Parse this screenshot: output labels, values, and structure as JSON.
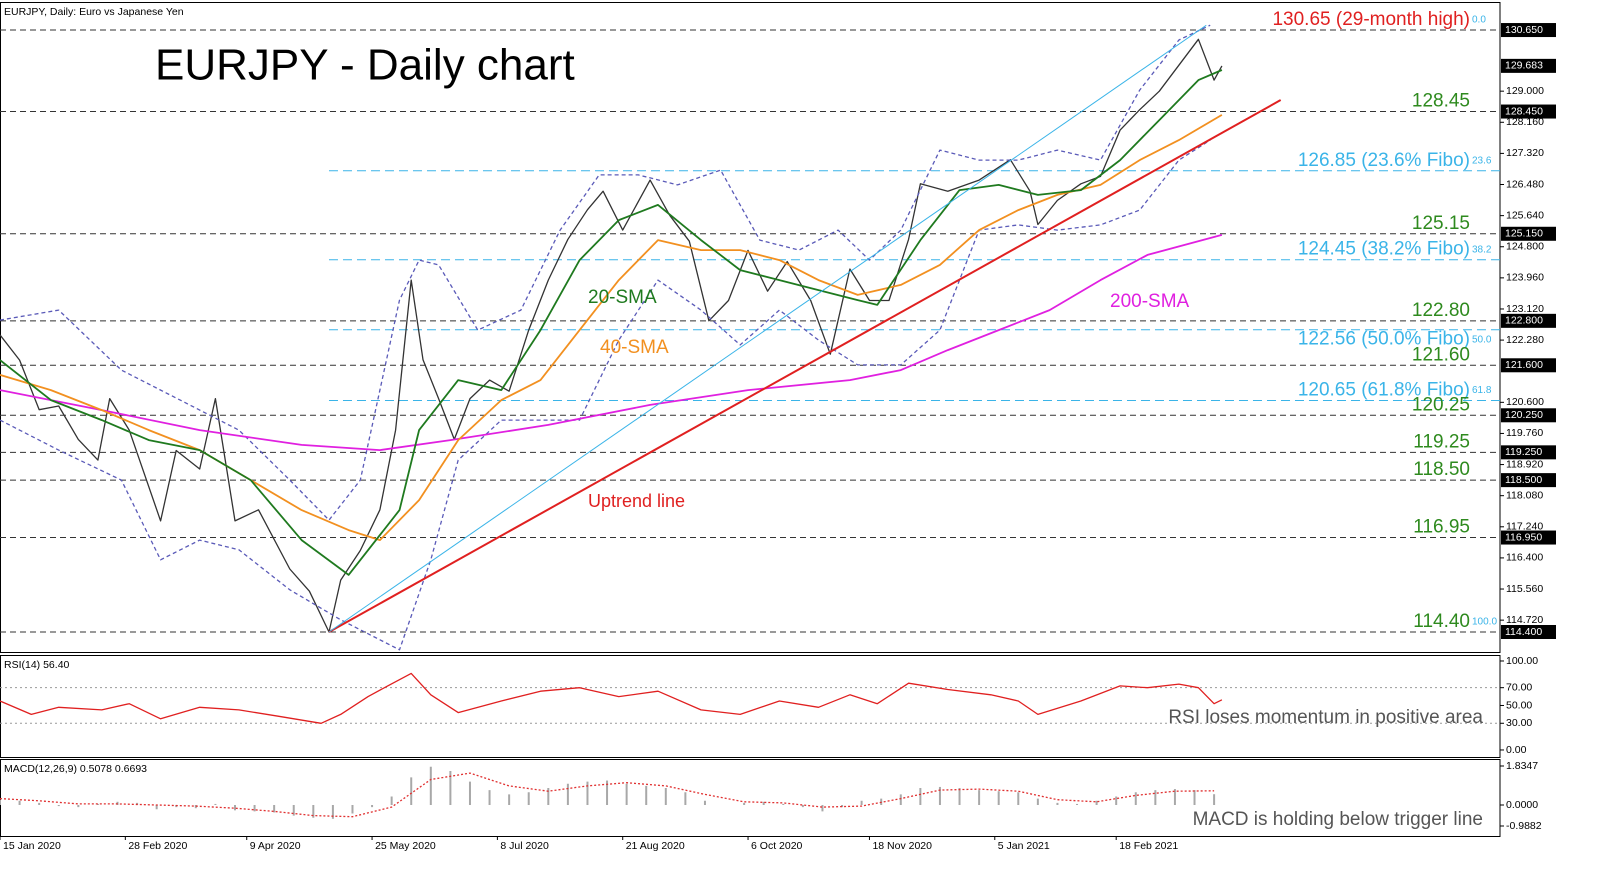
{
  "chart_data": [
    {
      "type": "line",
      "title": "EURJPY, Daily:  Euro vs Japanese Yen",
      "annotation": "EURJPY - Daily chart",
      "xlim": [
        0,
        383
      ],
      "ylim": [
        113.86,
        131.38
      ],
      "yticks": [
        {
          "value": 129.0,
          "label": "129.000"
        },
        {
          "value": 128.16,
          "label": "128.160"
        },
        {
          "value": 127.32,
          "label": "127.320"
        },
        {
          "value": 126.48,
          "label": "126.480"
        },
        {
          "value": 125.64,
          "label": "125.640"
        },
        {
          "value": 124.8,
          "label": "124.800"
        },
        {
          "value": 123.96,
          "label": "123.960"
        },
        {
          "value": 123.12,
          "label": "123.120"
        },
        {
          "value": 122.28,
          "label": "122.280"
        },
        {
          "value": 120.6,
          "label": "120.600"
        },
        {
          "value": 119.76,
          "label": "119.760"
        },
        {
          "value": 118.92,
          "label": "118.920"
        },
        {
          "value": 118.08,
          "label": "118.080"
        },
        {
          "value": 117.24,
          "label": "117.240"
        },
        {
          "value": 116.4,
          "label": "116.400"
        },
        {
          "value": 115.56,
          "label": "115.560"
        },
        {
          "value": 114.72,
          "label": "114.720"
        }
      ],
      "last_label": "129.683",
      "series": [
        {
          "color": "#333333",
          "x": [
            0,
            5,
            10,
            15,
            20,
            25,
            28,
            33,
            41,
            45,
            51,
            55,
            60,
            66,
            74,
            79,
            84,
            87,
            92,
            97,
            101,
            105,
            108,
            112,
            116,
            120,
            125,
            130,
            135,
            140,
            145,
            150,
            154,
            159,
            166,
            171,
            176,
            181,
            186,
            191,
            196,
            201,
            207,
            212,
            217,
            222,
            227,
            232,
            235,
            242,
            250,
            258,
            263,
            265,
            270,
            276,
            281,
            286,
            291,
            296,
            301,
            306,
            310,
            312
          ],
          "values": [
            122.42,
            121.74,
            120.4,
            120.5,
            119.6,
            119.04,
            120.7,
            119.85,
            117.4,
            119.3,
            118.8,
            120.7,
            117.4,
            117.7,
            116.1,
            115.5,
            114.4,
            115.8,
            116.6,
            117.7,
            119.85,
            123.9,
            121.75,
            120.7,
            119.6,
            120.7,
            121.2,
            120.9,
            122.55,
            123.9,
            125.0,
            125.8,
            126.3,
            125.25,
            126.6,
            125.65,
            124.95,
            122.8,
            123.35,
            124.7,
            123.6,
            124.4,
            123.35,
            121.9,
            124.2,
            123.35,
            123.35,
            125.0,
            126.5,
            126.3,
            126.6,
            127.15,
            126.3,
            125.4,
            126.05,
            126.5,
            126.7,
            127.95,
            128.5,
            129.0,
            129.7,
            130.4,
            129.3,
            129.683
          ]
        },
        {
          "color": "#5a5ab8",
          "style": "dashed",
          "x": [
            0,
            15,
            31,
            46,
            61,
            74,
            84,
            92,
            102,
            107,
            112,
            122,
            133,
            143,
            153,
            163,
            173,
            184,
            194,
            204,
            214,
            222,
            230,
            240,
            250,
            260,
            270,
            281,
            291,
            301,
            309
          ],
          "values": [
            122.82,
            123.09,
            121.47,
            120.66,
            119.85,
            118.5,
            117.42,
            118.5,
            123.36,
            124.44,
            124.31,
            122.55,
            123.09,
            125.25,
            126.74,
            126.74,
            126.47,
            126.87,
            124.98,
            124.71,
            125.25,
            124.44,
            125.25,
            127.41,
            127.14,
            127.14,
            127.41,
            127.14,
            129.03,
            130.38,
            130.78
          ]
        },
        {
          "color": "#5a5ab8",
          "style": "dashed",
          "x": [
            0,
            15,
            31,
            41,
            51,
            61,
            74,
            87,
            102,
            110,
            117,
            128,
            138,
            148,
            158,
            168,
            179,
            189,
            199,
            209,
            219,
            230,
            240,
            250,
            260,
            270,
            281,
            291,
            301,
            309
          ],
          "values": [
            120.12,
            119.31,
            118.5,
            116.35,
            116.88,
            116.62,
            115.54,
            114.73,
            113.92,
            116.35,
            119.04,
            120.12,
            120.12,
            120.12,
            122.28,
            123.9,
            123.09,
            122.15,
            123.09,
            122.28,
            121.61,
            121.61,
            122.55,
            125.25,
            125.39,
            125.25,
            125.39,
            125.79,
            127.14,
            127.68
          ]
        },
        {
          "name": "200-SMA",
          "color": "#e020e0",
          "x": [
            0,
            26,
            51,
            77,
            97,
            115,
            140,
            166,
            191,
            217,
            230,
            242,
            255,
            268,
            281,
            293,
            312
          ],
          "values": [
            120.93,
            120.39,
            119.85,
            119.45,
            119.31,
            119.58,
            119.99,
            120.53,
            120.93,
            121.2,
            121.47,
            122.01,
            122.55,
            123.09,
            123.9,
            124.58,
            125.12
          ]
        },
        {
          "name": "40-SMA",
          "color": "#f29020",
          "x": [
            0,
            13,
            26,
            38,
            51,
            64,
            77,
            89,
            97,
            107,
            117,
            128,
            138,
            148,
            158,
            168,
            179,
            189,
            199,
            209,
            219,
            230,
            240,
            250,
            260,
            270,
            281,
            291,
            301,
            312
          ],
          "values": [
            121.34,
            120.93,
            120.39,
            119.85,
            119.31,
            118.5,
            117.69,
            117.15,
            116.88,
            117.96,
            119.58,
            120.66,
            121.2,
            122.55,
            123.9,
            124.98,
            124.71,
            124.71,
            124.44,
            123.9,
            123.5,
            123.77,
            124.31,
            125.25,
            125.79,
            126.2,
            126.47,
            127.14,
            127.68,
            128.36
          ]
        },
        {
          "name": "20-SMA",
          "color": "#1f7a1f",
          "x": [
            0,
            13,
            26,
            38,
            51,
            64,
            77,
            89,
            102,
            107,
            117,
            128,
            138,
            148,
            158,
            168,
            179,
            189,
            199,
            209,
            219,
            224,
            235,
            245,
            255,
            265,
            276,
            286,
            296,
            306,
            312
          ],
          "values": [
            121.74,
            120.66,
            120.12,
            119.58,
            119.31,
            118.5,
            116.88,
            115.94,
            117.69,
            119.85,
            121.2,
            120.93,
            122.55,
            124.44,
            125.52,
            125.93,
            124.98,
            124.17,
            123.9,
            123.63,
            123.36,
            123.23,
            124.98,
            126.33,
            126.47,
            126.2,
            126.33,
            127.14,
            128.22,
            129.3,
            129.57
          ]
        }
      ],
      "lines": [
        {
          "label": "Uptrend line",
          "color": "#e02020",
          "x": [
            84,
            327
          ],
          "values": [
            114.4,
            128.76
          ]
        },
        {
          "color": "#3ab4e8",
          "x": [
            84,
            308
          ],
          "values": [
            114.4,
            130.78
          ]
        }
      ],
      "levels": [
        {
          "value": 130.65,
          "label": "130.65 (29-month high)",
          "color": "#e02020",
          "axis_label": "130.650",
          "fibo": "0.0"
        },
        {
          "value": 128.45,
          "label": "128.45",
          "color": "#2e8a1e",
          "axis_label": "128.450"
        },
        {
          "value": 126.85,
          "label": "126.85 (23.6% Fibo)",
          "color": "#3ab4e8",
          "fibo": "23.6"
        },
        {
          "value": 125.15,
          "label": "125.15",
          "color": "#2e8a1e",
          "axis_label": "125.150"
        },
        {
          "value": 124.45,
          "label": "124.45 (38.2% Fibo)",
          "color": "#3ab4e8",
          "fibo": "38.2"
        },
        {
          "value": 122.8,
          "label": "122.80",
          "color": "#2e8a1e",
          "axis_label": "122.800"
        },
        {
          "value": 122.56,
          "label": "122.56 (50.0% Fibo)",
          "color": "#3ab4e8",
          "fibo": "50.0"
        },
        {
          "value": 121.6,
          "label": "121.60",
          "color": "#2e8a1e",
          "axis_label": "121.600"
        },
        {
          "value": 120.65,
          "label": "120.65 (61.8% Fibo)",
          "color": "#3ab4e8",
          "fibo": "61.8"
        },
        {
          "value": 120.25,
          "label": "120.25",
          "color": "#2e8a1e",
          "axis_label": "120.250"
        },
        {
          "value": 119.25,
          "label": "119.25",
          "color": "#2e8a1e",
          "axis_label": "119.250"
        },
        {
          "value": 118.5,
          "label": "118.50",
          "color": "#2e8a1e",
          "axis_label": "118.500"
        },
        {
          "value": 116.95,
          "label": "116.95",
          "color": "#2e8a1e",
          "axis_label": "116.950"
        },
        {
          "value": 114.4,
          "label": "114.40",
          "color": "#2e8a1e",
          "axis_label": "114.400",
          "fibo": "100.0"
        }
      ]
    },
    {
      "type": "line",
      "title": "RSI(14) 56.40",
      "annotation": "RSI loses momentum in positive area",
      "xlim": [
        0,
        383
      ],
      "ylim": [
        -7.9,
        105.6
      ],
      "yticks": [
        {
          "value": 100,
          "label": "100.00"
        },
        {
          "value": 70,
          "label": "70.00"
        },
        {
          "value": 50,
          "label": "50.00"
        },
        {
          "value": 30,
          "label": "30.00"
        },
        {
          "value": 0,
          "label": "0.00"
        }
      ],
      "levels": [
        70,
        30
      ],
      "series": [
        {
          "color": "#e02020",
          "x": [
            0,
            8,
            15,
            26,
            33,
            41,
            51,
            61,
            71,
            82,
            87,
            94,
            99,
            105,
            110,
            117,
            128,
            138,
            148,
            158,
            168,
            179,
            189,
            199,
            209,
            217,
            224,
            232,
            242,
            253,
            260,
            265,
            276,
            286,
            293,
            301,
            306,
            310,
            312
          ],
          "values": [
            55,
            40,
            48,
            45,
            52,
            35,
            48,
            45,
            38,
            30,
            40,
            60,
            72,
            86,
            62,
            42,
            55,
            66,
            70,
            60,
            66,
            45,
            40,
            55,
            48,
            62,
            52,
            75,
            68,
            62,
            55,
            40,
            55,
            72,
            70,
            74,
            70,
            52,
            56.4
          ]
        }
      ]
    },
    {
      "type": "bar",
      "title": "MACD(12,26,9) 0.5078 0.6693",
      "annotation": "MACD is holding below trigger line",
      "xlim": [
        0,
        383
      ],
      "ylim": [
        -1.458,
        2.117
      ],
      "yticks": [
        1.8347,
        {
          "value": 0,
          "label": "0.0000"
        },
        -0.9882
      ],
      "xticks": [
        {
          "value": 0,
          "label": "15 Jan 2020"
        },
        {
          "value": 32,
          "label": "28 Feb 2020"
        },
        {
          "value": 63,
          "label": "9 Apr 2020"
        },
        {
          "value": 95,
          "label": "25 May 2020"
        },
        {
          "value": 127,
          "label": "8 Jul 2020"
        },
        {
          "value": 159,
          "label": "21 Aug 2020"
        },
        {
          "value": 191,
          "label": "6 Oct 2020"
        },
        {
          "value": 222,
          "label": "18 Nov 2020"
        },
        {
          "value": 254,
          "label": "5 Jan 2021"
        },
        {
          "value": 285,
          "label": "18 Feb 2021"
        }
      ],
      "series": [
        {
          "type": "bar",
          "color": "#a8a8a8",
          "x": [
            0,
            5,
            10,
            15,
            20,
            25,
            30,
            35,
            40,
            45,
            50,
            55,
            60,
            65,
            70,
            75,
            80,
            85,
            90,
            95,
            100,
            105,
            110,
            115,
            120,
            125,
            130,
            135,
            140,
            145,
            150,
            155,
            160,
            165,
            170,
            175,
            180,
            185,
            190,
            195,
            200,
            205,
            210,
            215,
            220,
            225,
            230,
            235,
            240,
            245,
            250,
            255,
            260,
            265,
            270,
            275,
            280,
            285,
            290,
            295,
            300,
            305,
            310
          ],
          "values": [
            0.25,
            0.2,
            0.1,
            -0.05,
            -0.1,
            0.05,
            0.15,
            0.1,
            -0.2,
            -0.1,
            -0.15,
            0.05,
            -0.25,
            -0.3,
            -0.35,
            -0.5,
            -0.6,
            -0.65,
            -0.4,
            -0.1,
            0.4,
            1.3,
            1.8,
            1.6,
            1.1,
            0.7,
            0.5,
            0.6,
            0.8,
            1.0,
            1.1,
            1.15,
            1.0,
            0.9,
            0.8,
            0.6,
            0.2,
            0.0,
            0.1,
            0.15,
            0.05,
            -0.1,
            -0.3,
            -0.1,
            0.2,
            0.3,
            0.5,
            0.8,
            0.85,
            0.8,
            0.7,
            0.65,
            0.6,
            0.3,
            0.1,
            0.05,
            0.2,
            0.4,
            0.6,
            0.7,
            0.75,
            0.7,
            0.5078
          ]
        },
        {
          "type": "line",
          "color": "#e03030",
          "style": "dotted",
          "x": [
            0,
            10,
            20,
            30,
            40,
            50,
            60,
            70,
            80,
            90,
            100,
            110,
            120,
            130,
            140,
            150,
            160,
            170,
            180,
            190,
            200,
            210,
            220,
            230,
            240,
            250,
            260,
            270,
            280,
            290,
            300,
            310
          ],
          "values": [
            0.3,
            0.2,
            0.05,
            0.05,
            0.0,
            -0.05,
            -0.15,
            -0.3,
            -0.5,
            -0.55,
            -0.1,
            1.2,
            1.5,
            0.9,
            0.65,
            0.9,
            1.05,
            0.9,
            0.5,
            0.15,
            0.1,
            -0.1,
            -0.05,
            0.3,
            0.7,
            0.75,
            0.65,
            0.25,
            0.15,
            0.45,
            0.65,
            0.6693
          ]
        }
      ]
    }
  ]
}
